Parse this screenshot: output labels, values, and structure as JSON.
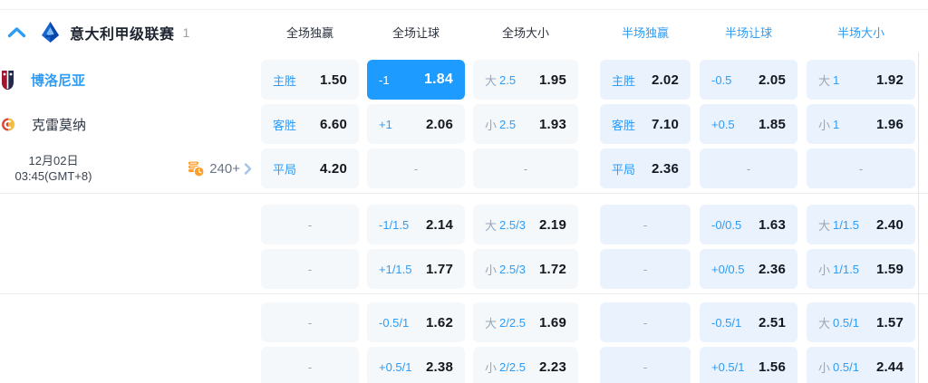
{
  "league": {
    "name": "意大利甲级联赛",
    "count": "1"
  },
  "icons": {
    "collapse": "chevron-up-icon",
    "league": "serie-a-logo",
    "more": "coins-clock-icon",
    "more_chevron": "chevron-right-icon"
  },
  "colors": {
    "accent_blue": "#2f9cf5",
    "selected_cell": "#1d9bfe",
    "cell_full_bg": "#f5f8fb",
    "cell_half_bg": "#e9f2fd",
    "orange": "#ff9e2c",
    "odds_text": "#14171e",
    "muted_gray": "#9aa6b5"
  },
  "headers": [
    {
      "label": "全场独赢",
      "half": false
    },
    {
      "label": "全场让球",
      "half": false
    },
    {
      "label": "全场大小",
      "half": false
    },
    {
      "label": "半场独赢",
      "half": true
    },
    {
      "label": "半场让球",
      "half": true
    },
    {
      "label": "半场大小",
      "half": true
    }
  ],
  "teams": [
    {
      "name": "博洛尼亚",
      "logo": "bologna-crest",
      "highlighted": true
    },
    {
      "name": "克雷莫纳",
      "logo": "cremonese-crest",
      "highlighted": false
    }
  ],
  "info": {
    "date": "12月02日",
    "time": "03:45(GMT+8)"
  },
  "markets": {
    "count": "240+"
  },
  "dash_char": "-",
  "groups": [
    3,
    2,
    2
  ],
  "rows": [
    [
      {
        "k": "lv",
        "label": "主胜",
        "value": "1.50"
      },
      {
        "k": "lv",
        "label": "-1",
        "value": "1.84",
        "sel": true
      },
      {
        "k": "ou",
        "side": "大",
        "line": "2.5",
        "value": "1.95"
      },
      {
        "k": "lv",
        "label": "主胜",
        "value": "2.02"
      },
      {
        "k": "lv",
        "label": "-0.5",
        "value": "2.05"
      },
      {
        "k": "ou",
        "side": "大",
        "line": "1",
        "value": "1.92"
      }
    ],
    [
      {
        "k": "lv",
        "label": "客胜",
        "value": "6.60"
      },
      {
        "k": "lv",
        "label": "+1",
        "value": "2.06"
      },
      {
        "k": "ou",
        "side": "小",
        "line": "2.5",
        "value": "1.93"
      },
      {
        "k": "lv",
        "label": "客胜",
        "value": "7.10"
      },
      {
        "k": "lv",
        "label": "+0.5",
        "value": "1.85"
      },
      {
        "k": "ou",
        "side": "小",
        "line": "1",
        "value": "1.96"
      }
    ],
    [
      {
        "k": "lv",
        "label": "平局",
        "value": "4.20"
      },
      {
        "k": "dash"
      },
      {
        "k": "dash"
      },
      {
        "k": "lv",
        "label": "平局",
        "value": "2.36"
      },
      {
        "k": "dash"
      },
      {
        "k": "dash"
      }
    ],
    [
      {
        "k": "dash"
      },
      {
        "k": "lv",
        "label": "-1/1.5",
        "value": "2.14"
      },
      {
        "k": "ou",
        "side": "大",
        "line": "2.5/3",
        "value": "2.19"
      },
      {
        "k": "dash"
      },
      {
        "k": "lv",
        "label": "-0/0.5",
        "value": "1.63"
      },
      {
        "k": "ou",
        "side": "大",
        "line": "1/1.5",
        "value": "2.40"
      }
    ],
    [
      {
        "k": "dash"
      },
      {
        "k": "lv",
        "label": "+1/1.5",
        "value": "1.77"
      },
      {
        "k": "ou",
        "side": "小",
        "line": "2.5/3",
        "value": "1.72"
      },
      {
        "k": "dash"
      },
      {
        "k": "lv",
        "label": "+0/0.5",
        "value": "2.36"
      },
      {
        "k": "ou",
        "side": "小",
        "line": "1/1.5",
        "value": "1.59"
      }
    ],
    [
      {
        "k": "dash"
      },
      {
        "k": "lv",
        "label": "-0.5/1",
        "value": "1.62"
      },
      {
        "k": "ou",
        "side": "大",
        "line": "2/2.5",
        "value": "1.69"
      },
      {
        "k": "dash"
      },
      {
        "k": "lv",
        "label": "-0.5/1",
        "value": "2.51"
      },
      {
        "k": "ou",
        "side": "大",
        "line": "0.5/1",
        "value": "1.57"
      }
    ],
    [
      {
        "k": "dash"
      },
      {
        "k": "lv",
        "label": "+0.5/1",
        "value": "2.38"
      },
      {
        "k": "ou",
        "side": "小",
        "line": "2/2.5",
        "value": "2.23"
      },
      {
        "k": "dash"
      },
      {
        "k": "lv",
        "label": "+0.5/1",
        "value": "1.56"
      },
      {
        "k": "ou",
        "side": "小",
        "line": "0.5/1",
        "value": "2.44"
      }
    ]
  ]
}
